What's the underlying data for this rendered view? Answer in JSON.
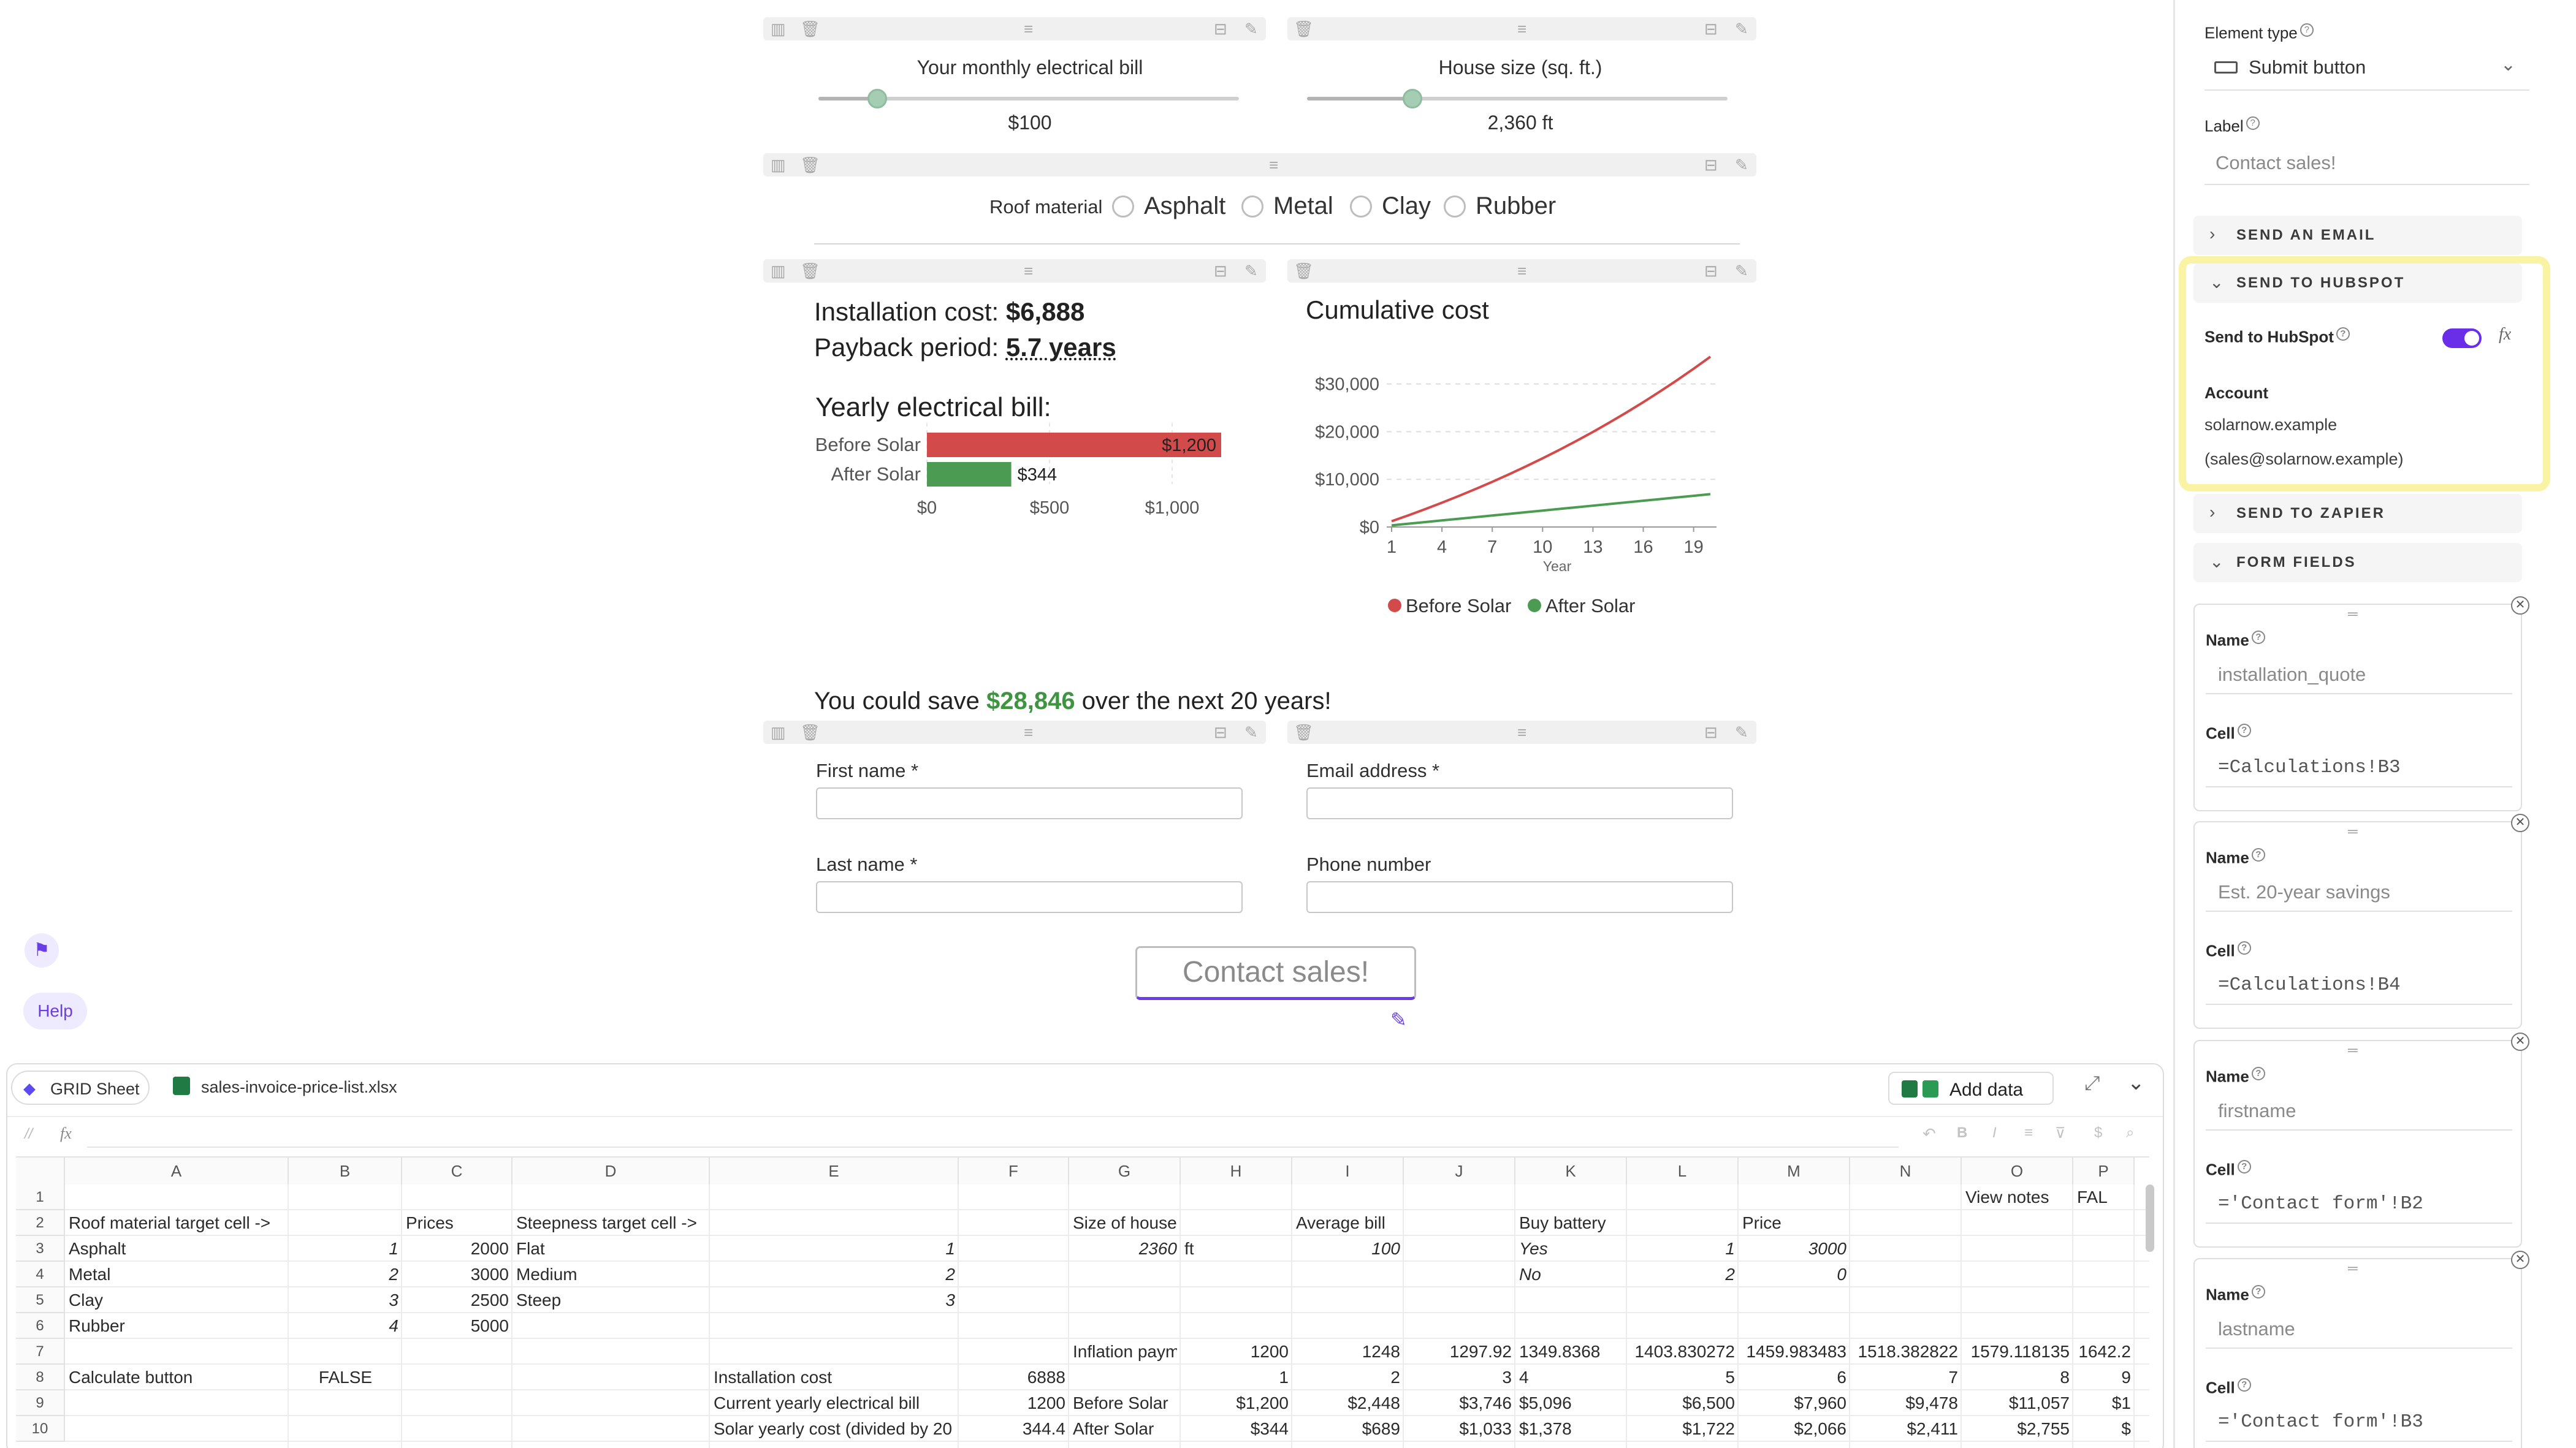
{
  "form": {
    "slider1": {
      "label": "Your monthly electrical bill",
      "value": "$100",
      "level": 0.14
    },
    "slider2": {
      "label": "House size (sq. ft.)",
      "value": "2,360 ft",
      "level": 0.25
    },
    "roof": {
      "label": "Roof material",
      "options": [
        "Asphalt",
        "Metal",
        "Clay",
        "Rubber"
      ]
    },
    "installation": {
      "label": "Installation cost:",
      "value": "$6,888"
    },
    "payback": {
      "label": "Payback period:",
      "value": "5.7 years"
    },
    "bill_title": "Yearly electrical bill:",
    "savings": {
      "prefix": "You could save",
      "value": "$28,846",
      "suffix": "over the next 20 years!"
    },
    "fields": {
      "first": "First name *",
      "email": "Email address *",
      "last": "Last name *",
      "phone": "Phone number"
    },
    "submit_label": "Contact sales!"
  },
  "left_rail": {
    "help": "Help"
  },
  "chart_data": [
    {
      "type": "bar",
      "title": "Yearly electrical bill:",
      "categories": [
        "Before Solar",
        "After Solar"
      ],
      "values": [
        1200,
        344
      ],
      "value_labels": [
        "$1,200",
        "$344"
      ],
      "colors": [
        "#d34a4a",
        "#4b9c52"
      ],
      "xticks": [
        "$0",
        "$500",
        "$1,000"
      ],
      "xlim": [
        0,
        1200
      ]
    },
    {
      "type": "line",
      "title": "Cumulative cost",
      "xlabel": "Year",
      "xticks": [
        "1",
        "4",
        "7",
        "10",
        "13",
        "16",
        "19"
      ],
      "yticks": [
        "$0",
        "$10,000",
        "$20,000",
        "$30,000"
      ],
      "ylim": [
        0,
        36000
      ],
      "x": [
        1,
        2,
        3,
        4,
        5,
        6,
        7,
        8,
        9,
        10,
        11,
        12,
        13,
        14,
        15,
        16,
        17,
        18,
        19,
        20
      ],
      "series": [
        {
          "name": "Before Solar",
          "color": "#d34a4a",
          "values": [
            1200,
            2448,
            3746,
            5096,
            6500,
            7960,
            9478,
            11057,
            12699,
            14406,
            16183,
            18030,
            19951,
            21949,
            24027,
            26188,
            28436,
            30773,
            33204,
            35732
          ]
        },
        {
          "name": "After Solar",
          "color": "#4b9c52",
          "values": [
            344,
            689,
            1033,
            1378,
            1722,
            2066,
            2411,
            2755,
            3100,
            3444,
            3788,
            4133,
            4477,
            4822,
            5166,
            5510,
            5855,
            6199,
            6544,
            6888
          ]
        }
      ],
      "legend": "bottom"
    }
  ],
  "sidebar": {
    "element_type_label": "Element type",
    "element_type_value": "Submit button",
    "label_label": "Label",
    "label_value": "Contact sales!",
    "sec_email": "SEND AN EMAIL",
    "sec_hubspot": "SEND TO HUBSPOT",
    "send_hubspot_label": "Send to HubSpot",
    "fx": "fx",
    "account_label": "Account",
    "account_domain": "solarnow.example",
    "account_email": "(sales@solarnow.example)",
    "sec_zapier": "SEND TO ZAPIER",
    "sec_fields": "FORM FIELDS",
    "name_label": "Name",
    "cell_label": "Cell",
    "cards": [
      {
        "name": "installation_quote",
        "cell": "=Calculations!B3"
      },
      {
        "name": "Est. 20-year savings",
        "cell": "=Calculations!B4"
      },
      {
        "name": "firstname",
        "cell": "='Contact form'!B2"
      },
      {
        "name": "lastname",
        "cell": "='Contact form'!B3"
      }
    ]
  },
  "grid": {
    "tab_label": "GRID Sheet",
    "file_label": "sales-invoice-price-list.xlsx",
    "add_data": "Add data",
    "fx": "fx",
    "columns": [
      "A",
      "B",
      "C",
      "D",
      "E",
      "F",
      "G",
      "H",
      "I",
      "J",
      "K",
      "L",
      "M",
      "N",
      "O",
      "P"
    ],
    "rows": [
      {
        "n": "1",
        "cells": {
          "O": "View notes",
          "P": "FAL"
        }
      },
      {
        "n": "2",
        "cells": {
          "A": "Roof material target cell ->",
          "C": "Prices",
          "D": "Steepness target cell ->",
          "G": "Size of house",
          "I": "Average bill",
          "K": "Buy battery",
          "M": "Price"
        }
      },
      {
        "n": "3",
        "cells": {
          "A": "Asphalt",
          "B": "1",
          "C": "2000",
          "D": "Flat",
          "E": "1",
          "G": "2360",
          "H": "ft",
          "I": "100",
          "K": "Yes",
          "L": "1",
          "M": "3000"
        }
      },
      {
        "n": "4",
        "cells": {
          "A": "Metal",
          "B": "2",
          "C": "3000",
          "D": "Medium",
          "E": "2",
          "K": "No",
          "L": "2",
          "M": "0"
        }
      },
      {
        "n": "5",
        "cells": {
          "A": "Clay",
          "B": "3",
          "C": "2500",
          "D": "Steep",
          "E": "3"
        }
      },
      {
        "n": "6",
        "cells": {
          "A": "Rubber",
          "B": "4",
          "C": "5000"
        }
      },
      {
        "n": "7",
        "cells": {
          "G": "Inflation paym",
          "H": "1200",
          "I": "1248",
          "J": "1297.92",
          "K": "1349.8368",
          "L": "1403.830272",
          "M": "1459.983483",
          "N": "1518.382822",
          "O": "1579.118135",
          "P": "1642.2"
        }
      },
      {
        "n": "8",
        "cells": {
          "A": "Calculate button",
          "B": "FALSE",
          "E": "Installation cost",
          "F": "6888",
          "H": "1",
          "I": "2",
          "J": "3",
          "K": "4",
          "L": "5",
          "M": "6",
          "N": "7",
          "O": "8",
          "P": "9"
        }
      },
      {
        "n": "9",
        "cells": {
          "E": "Current yearly electrical bill",
          "F": "1200",
          "G": "Before Solar",
          "H": "$1,200",
          "I": "$2,448",
          "J": "$3,746",
          "K": "$5,096",
          "L": "$6,500",
          "M": "$7,960",
          "N": "$9,478",
          "O": "$11,057",
          "P": "$1"
        }
      },
      {
        "n": "10",
        "cells": {
          "E": "Solar yearly cost (divided by 20",
          "F": "344.4",
          "G": "After Solar",
          "H": "$344",
          "I": "$689",
          "J": "$1,033",
          "K": "$1,378",
          "L": "$1,722",
          "M": "$2,066",
          "N": "$2,411",
          "O": "$2,755",
          "P": "$"
        }
      }
    ]
  }
}
